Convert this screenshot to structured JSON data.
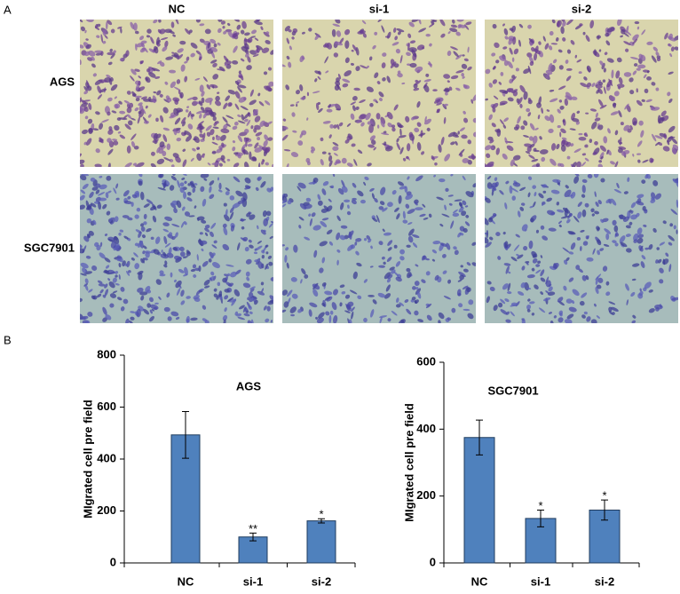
{
  "panel_a": {
    "label": "A",
    "columns": [
      "NC",
      "si-1",
      "si-2"
    ],
    "rows": [
      "AGS",
      "SGC7901"
    ]
  },
  "panel_b_label": "B",
  "chart_data": [
    {
      "type": "bar",
      "title": "AGS",
      "y_label": "MIgrated cell pre field",
      "categories": [
        "NC",
        "si-1",
        "si-2"
      ],
      "values": [
        493,
        100,
        162
      ],
      "errors": [
        90,
        15,
        8
      ],
      "annotations": [
        null,
        "**",
        "*"
      ],
      "color": "#4f81bd",
      "ylim": [
        0,
        800
      ],
      "yticks": [
        0,
        200,
        400,
        600,
        800
      ]
    },
    {
      "type": "bar",
      "title": "SGC7901",
      "y_label": "MIgrated cell pre field",
      "categories": [
        "NC",
        "si-1",
        "si-2"
      ],
      "values": [
        375,
        133,
        158
      ],
      "errors": [
        52,
        25,
        30
      ],
      "annotations": [
        null,
        "*",
        "*"
      ],
      "color": "#4f81bd",
      "ylim": [
        0,
        600
      ],
      "yticks": [
        0,
        200,
        400,
        600
      ]
    }
  ]
}
